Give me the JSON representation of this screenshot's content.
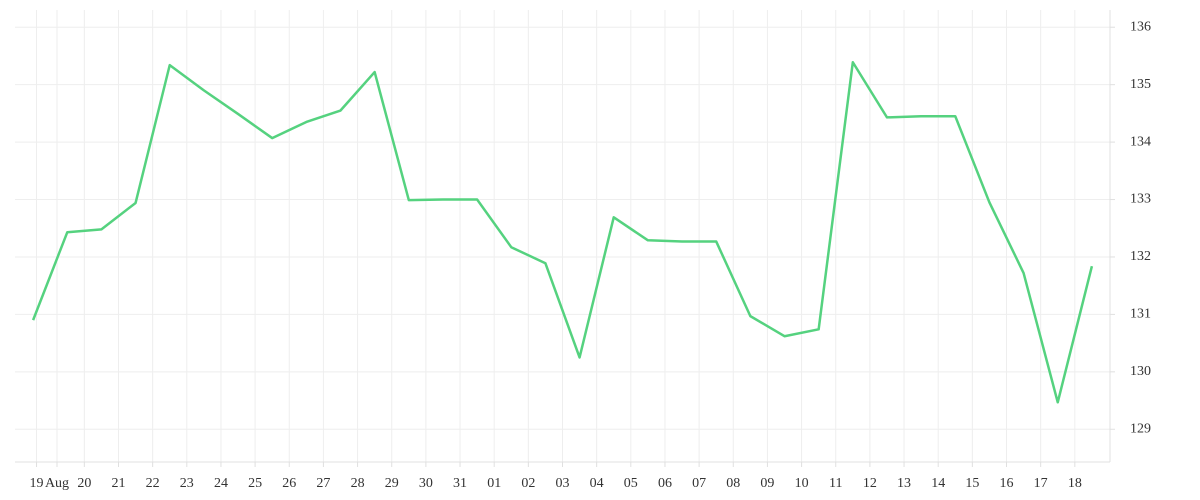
{
  "chart_data": {
    "type": "line",
    "x": [
      0,
      1,
      2,
      3,
      4,
      5,
      6,
      7,
      8,
      9,
      10,
      11,
      12,
      13,
      14,
      15,
      16,
      17,
      18,
      19,
      20,
      21,
      22,
      23,
      24,
      25,
      26,
      27,
      28,
      29,
      30,
      31
    ],
    "series": [
      {
        "color": "#55d27f",
        "values": [
          130.9,
          132.43,
          132.48,
          132.94,
          135.34,
          134.9,
          134.49,
          134.07,
          134.35,
          134.55,
          135.22,
          132.99,
          133.0,
          133.0,
          132.17,
          131.89,
          130.25,
          132.69,
          132.29,
          132.27,
          132.27,
          130.97,
          130.62,
          130.74,
          135.39,
          134.43,
          134.45,
          134.45,
          132.95,
          131.72,
          129.47,
          131.84
        ]
      }
    ],
    "xlim": [
      -0.53,
      31.53
    ],
    "xticks": [
      {
        "value": 0.1,
        "label": "19"
      },
      {
        "value": 0.7,
        "label": "Aug"
      },
      {
        "value": 1.5,
        "label": "20"
      },
      {
        "value": 2.5,
        "label": "21"
      },
      {
        "value": 3.5,
        "label": "22"
      },
      {
        "value": 4.5,
        "label": "23"
      },
      {
        "value": 5.5,
        "label": "24"
      },
      {
        "value": 6.5,
        "label": "25"
      },
      {
        "value": 7.5,
        "label": "26"
      },
      {
        "value": 8.5,
        "label": "27"
      },
      {
        "value": 9.5,
        "label": "28"
      },
      {
        "value": 10.5,
        "label": "29"
      },
      {
        "value": 11.5,
        "label": "30"
      },
      {
        "value": 12.5,
        "label": "31"
      },
      {
        "value": 13.5,
        "label": "01"
      },
      {
        "value": 14.5,
        "label": "02"
      },
      {
        "value": 15.5,
        "label": "03"
      },
      {
        "value": 16.5,
        "label": "04"
      },
      {
        "value": 17.5,
        "label": "05"
      },
      {
        "value": 18.5,
        "label": "06"
      },
      {
        "value": 19.5,
        "label": "07"
      },
      {
        "value": 20.5,
        "label": "08"
      },
      {
        "value": 21.5,
        "label": "09"
      },
      {
        "value": 22.5,
        "label": "10"
      },
      {
        "value": 23.5,
        "label": "11"
      },
      {
        "value": 24.5,
        "label": "12"
      },
      {
        "value": 25.5,
        "label": "13"
      },
      {
        "value": 26.5,
        "label": "14"
      },
      {
        "value": 27.5,
        "label": "15"
      },
      {
        "value": 28.5,
        "label": "16"
      },
      {
        "value": 29.5,
        "label": "17"
      },
      {
        "value": 30.5,
        "label": "18"
      }
    ],
    "ylim": [
      128.43,
      136.3
    ],
    "yticks": [
      129,
      130,
      131,
      132,
      133,
      134,
      135,
      136
    ],
    "grid": true
  }
}
